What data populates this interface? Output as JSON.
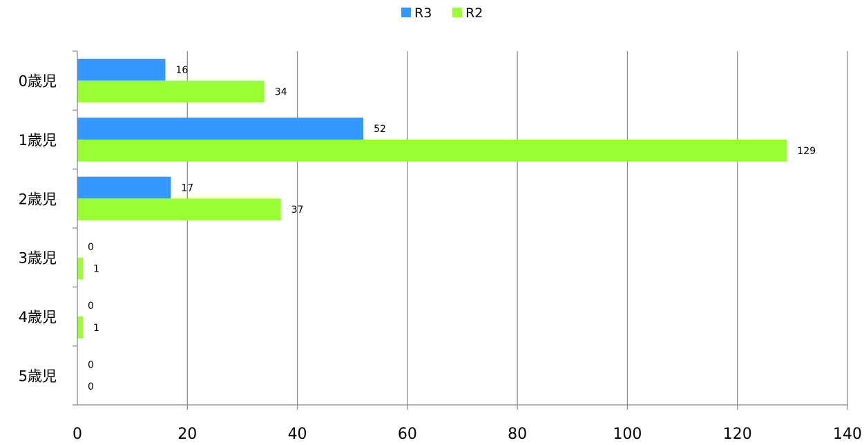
{
  "chart_data": {
    "type": "bar",
    "orientation": "horizontal",
    "categories": [
      "0歳児",
      "1歳児",
      "2歳児",
      "3歳児",
      "4歳児",
      "5歳児"
    ],
    "series": [
      {
        "name": "R3",
        "color": "#3399FF",
        "values": [
          16,
          52,
          17,
          0,
          0,
          0
        ]
      },
      {
        "name": "R2",
        "color": "#99FF33",
        "values": [
          34,
          129,
          37,
          1,
          1,
          0
        ]
      }
    ],
    "x_ticks": [
      "0",
      "20",
      "40",
      "60",
      "80",
      "100",
      "120",
      "140"
    ],
    "xlim": [
      0,
      140
    ],
    "grid": "vertical",
    "legend_position": "top-center",
    "data_labels": true,
    "gridline_color": "#8C8C8C"
  }
}
